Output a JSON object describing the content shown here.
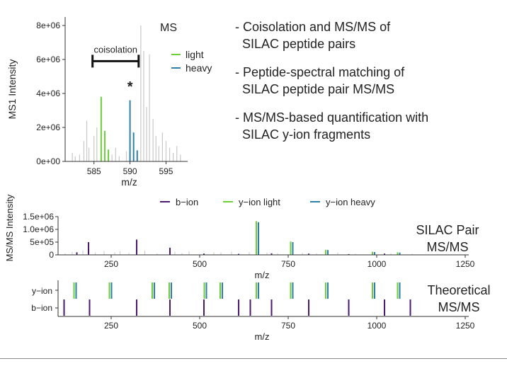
{
  "bullets": [
    [
      "- Coisolation and MS/MS of",
      "  SILAC peptide pairs"
    ],
    [
      "- Peptide-spectral matching of",
      "  SILAC peptide pair MS/MS"
    ],
    [
      "- MS/MS-based quantification with",
      "  SILAC y-ion fragments"
    ]
  ],
  "labels": {
    "pair_line1": "SILAC Pair",
    "pair_line2": "MS/MS",
    "theo_line1": "Theoretical",
    "theo_line2": "MS/MS"
  },
  "colors": {
    "light": "#6ccf3a",
    "heavy": "#2e7fa8",
    "b_ion": "#4b1a6e",
    "background": "#c8c8c8",
    "axis": "#333333"
  },
  "chart_data": [
    {
      "type": "bar",
      "panel": "ms1",
      "title": "MS",
      "xlabel": "m/z",
      "ylabel": "MS1 Intensity",
      "xlim": [
        581,
        598
      ],
      "ylim": [
        0,
        8500000
      ],
      "xticks": [
        585,
        590,
        595
      ],
      "yticks": [
        0,
        2000000,
        4000000,
        6000000,
        8000000
      ],
      "ytick_labels": [
        "0e+00",
        "2e+06",
        "4e+06",
        "6e+06",
        "8e+06"
      ],
      "legend": {
        "position": "right",
        "entries": [
          "light",
          "heavy"
        ]
      },
      "annotation": {
        "text": "coisolation",
        "from": 584.8,
        "to": 591.2,
        "y": 5900000
      },
      "star": {
        "text": "*",
        "x": 590,
        "y": 4300000
      },
      "series": [
        {
          "name": "light",
          "x": [
            586,
            586.5,
            587
          ],
          "y": [
            3800000,
            1800000,
            700000
          ]
        },
        {
          "name": "heavy",
          "x": [
            590,
            590.5,
            591
          ],
          "y": [
            3600000,
            1700000,
            650000
          ]
        },
        {
          "name": "",
          "x": [
            582,
            582.4,
            583,
            583.6,
            584,
            584.3,
            585,
            585.4,
            587.5,
            588,
            588.5,
            589.5,
            591.5,
            591.9,
            592.3,
            592.7,
            593.2,
            593.6,
            594,
            594.5,
            595,
            595.5,
            596,
            596.5,
            597
          ],
          "y": [
            500000,
            300000,
            400000,
            1200000,
            2400000,
            800000,
            1500000,
            2000000,
            400000,
            800000,
            300000,
            600000,
            8000000,
            6500000,
            3200000,
            6300000,
            2500000,
            1500000,
            900000,
            1700000,
            1200000,
            800000,
            500000,
            900000,
            400000
          ]
        }
      ]
    },
    {
      "type": "bar",
      "panel": "silac_pair_msms",
      "xlabel": "m/z",
      "ylabel": "MS/MS Intensity",
      "xlim": [
        100,
        1260
      ],
      "ylim": [
        0,
        1500000
      ],
      "xticks": [
        250,
        500,
        750,
        1000,
        1250
      ],
      "yticks": [
        0,
        500000,
        1000000,
        1500000
      ],
      "ytick_labels": [
        "0",
        "5e+05",
        "1.0e+06",
        "1.5e+06"
      ],
      "legend": {
        "position": "top",
        "entries": [
          "b−ion",
          "y−ion light",
          "y−ion heavy"
        ]
      },
      "series": [
        {
          "name": "b−ion",
          "x": [
            153,
            186,
            322,
            416,
            512,
            610,
            703,
            808,
            921,
            1022
          ],
          "y": [
            100000,
            500000,
            600000,
            280000,
            50000,
            40000,
            60000,
            50000,
            30000,
            50000
          ]
        },
        {
          "name": "y−ion light",
          "x": [
            660,
            757,
            856,
            988,
            1059
          ],
          "y": [
            1320000,
            520000,
            200000,
            120000,
            100000
          ]
        },
        {
          "name": "y−ion heavy",
          "x": [
            666,
            763,
            862,
            994,
            1065
          ],
          "y": [
            1280000,
            500000,
            190000,
            110000,
            90000
          ]
        },
        {
          "name": "",
          "x": [
            120,
            140,
            170,
            205,
            230,
            260,
            275,
            300,
            345,
            380,
            430,
            450,
            470,
            540,
            560,
            590,
            640,
            690,
            720,
            790,
            830,
            890,
            940,
            1040,
            1100
          ],
          "y": [
            60000,
            120000,
            170000,
            90000,
            150000,
            100000,
            140000,
            80000,
            170000,
            60000,
            120000,
            70000,
            140000,
            100000,
            90000,
            130000,
            110000,
            90000,
            70000,
            80000,
            60000,
            90000,
            50000,
            60000,
            40000
          ]
        }
      ]
    },
    {
      "type": "bar",
      "panel": "theoretical_msms",
      "xlabel": "m/z",
      "xlim": [
        100,
        1260
      ],
      "xticks": [
        250,
        500,
        750,
        1000,
        1250
      ],
      "rows": [
        "y−ion",
        "b−ion"
      ],
      "y_light": [
        145,
        245,
        366,
        414,
        513,
        558,
        660,
        757,
        856,
        988,
        1059
      ],
      "y_heavy": [
        151,
        251,
        372,
        420,
        519,
        564,
        666,
        763,
        862,
        994,
        1065
      ],
      "b_ions": [
        117,
        189,
        322,
        416,
        512,
        610,
        643,
        703,
        808,
        921,
        1022,
        1095
      ]
    }
  ]
}
